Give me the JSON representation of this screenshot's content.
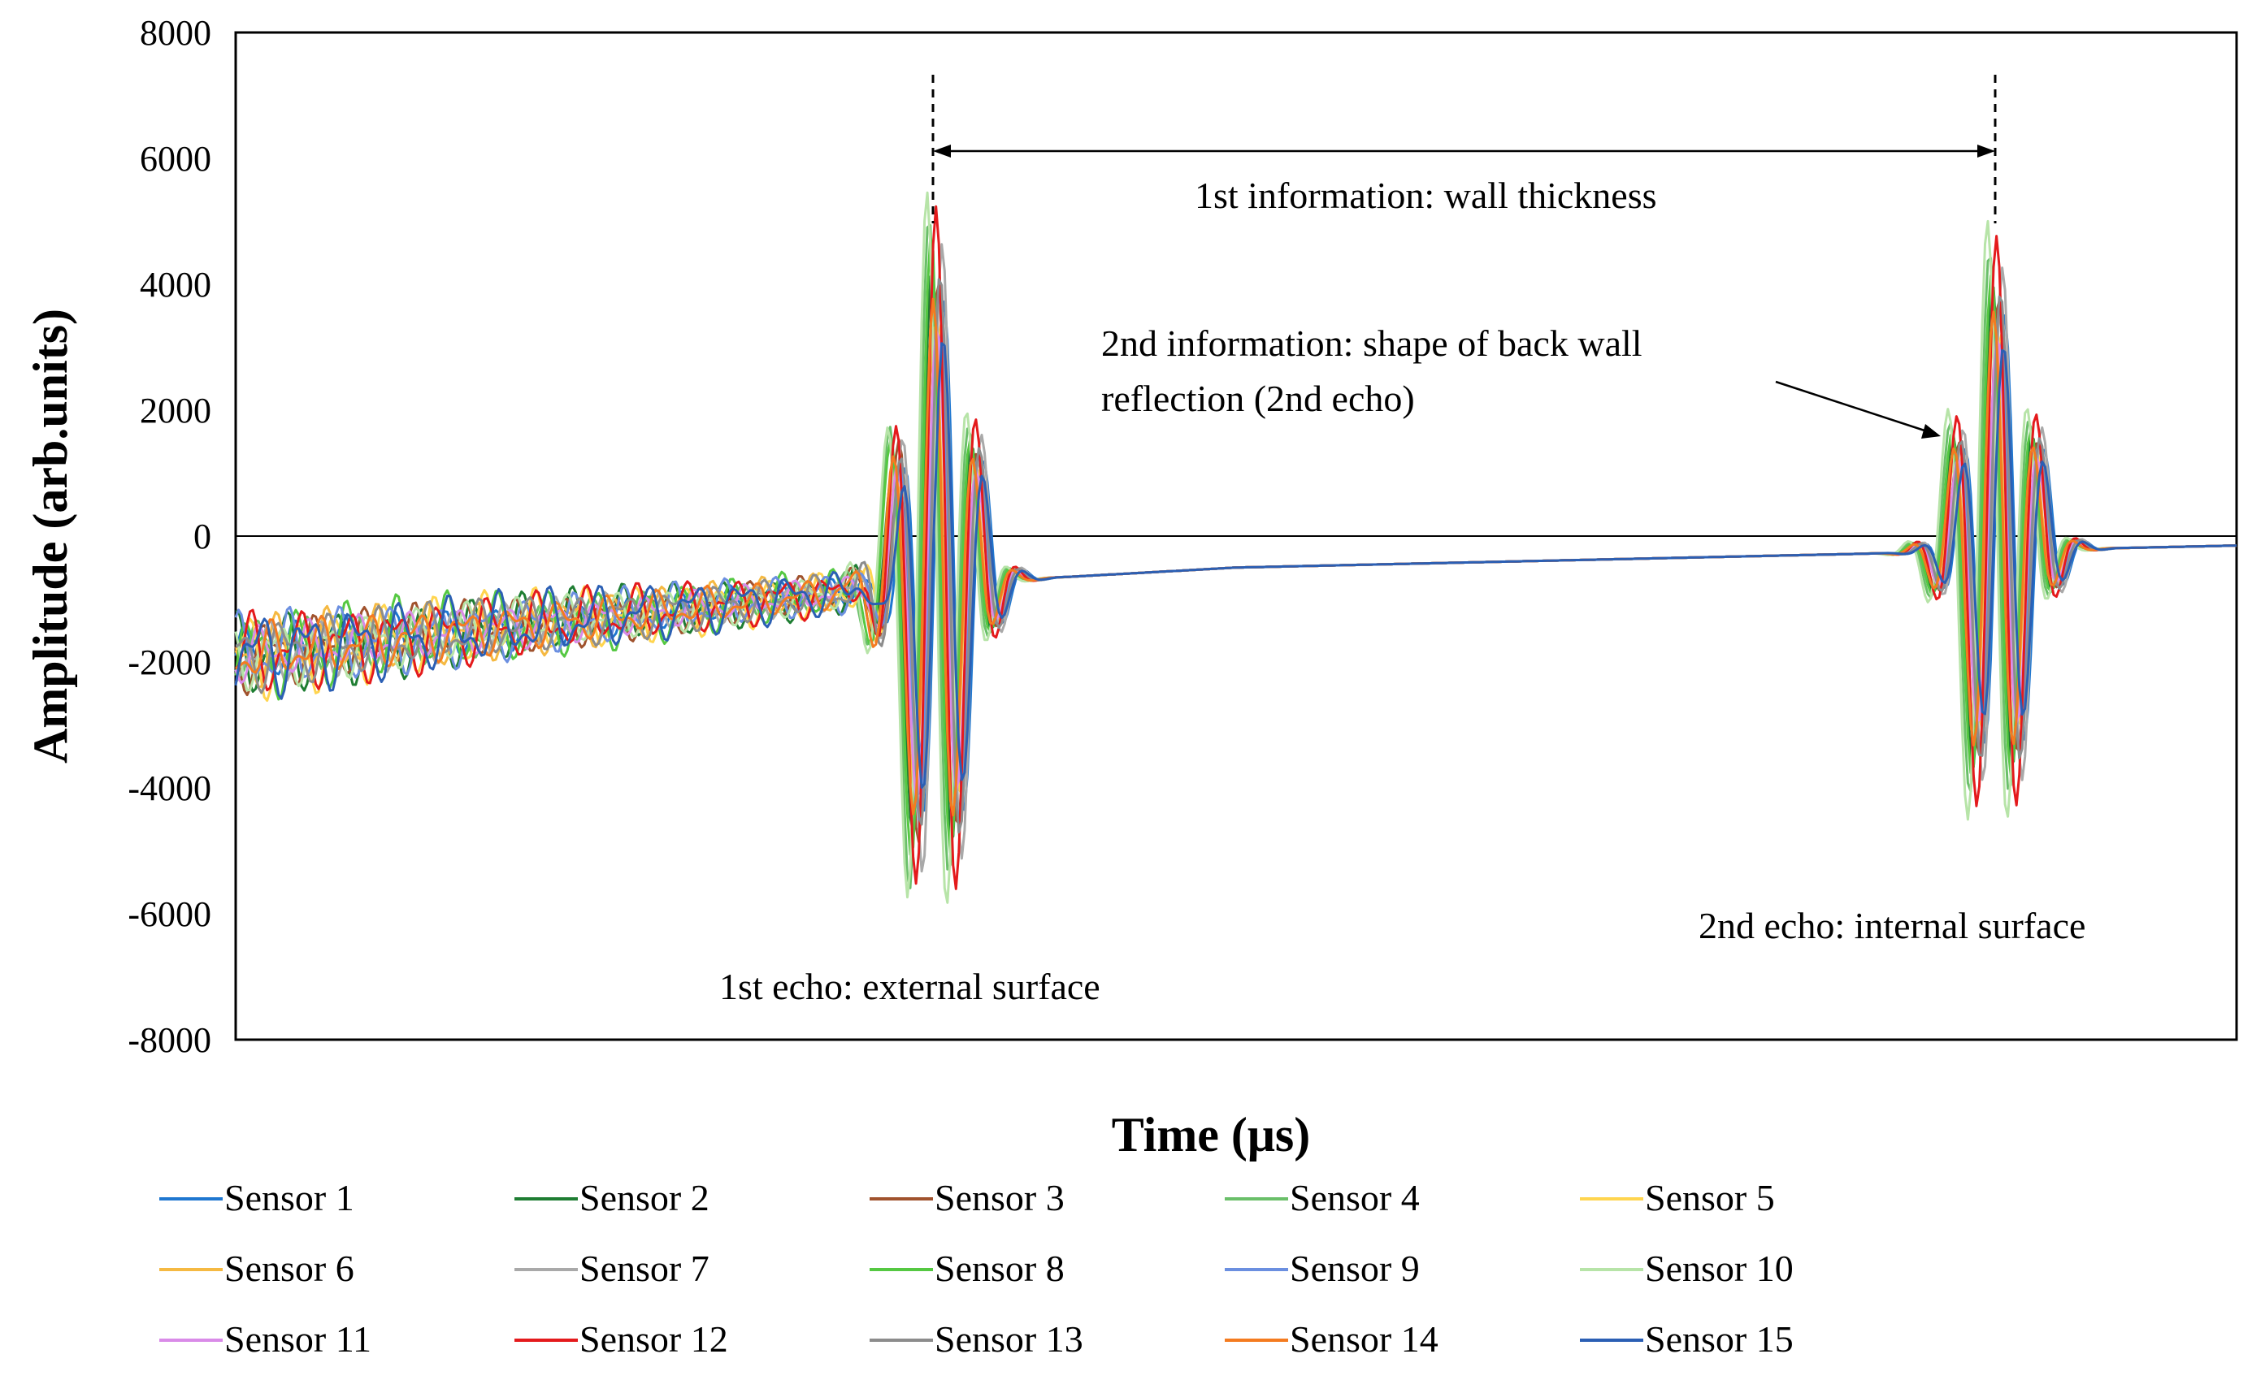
{
  "chart_data": {
    "type": "line",
    "title": "",
    "xlabel": "Time (μs)",
    "ylabel": "Amplitude (arb.units)",
    "ylim": [
      -8000,
      8000
    ],
    "yticks": [
      8000,
      6000,
      4000,
      2000,
      0,
      -2000,
      -4000,
      -6000,
      -8000
    ],
    "xlim": [
      0,
      100
    ],
    "legend_position": "bottom",
    "annotations": [
      {
        "text": "1st information: wall thickness"
      },
      {
        "text_line1": "2nd information: shape of back wall",
        "text_line2": "reflection (2nd echo)"
      },
      {
        "text": "1st echo: external surface"
      },
      {
        "text": "2nd echo: internal surface"
      }
    ],
    "echoes": [
      {
        "name": "1st echo",
        "time": 35,
        "peak_amplitude": 6000
      },
      {
        "name": "2nd echo",
        "time": 88,
        "peak_amplitude": 5000
      }
    ],
    "series": [
      {
        "name": "Sensor 1",
        "color": "#1f77d0",
        "gain": 0.75,
        "shift": 0.4
      },
      {
        "name": "Sensor 2",
        "color": "#1e7d32",
        "gain": 0.85,
        "shift": -0.2
      },
      {
        "name": "Sensor 3",
        "color": "#a0522d",
        "gain": 0.8,
        "shift": 0.1
      },
      {
        "name": "Sensor 4",
        "color": "#6abf69",
        "gain": 0.95,
        "shift": -0.35
      },
      {
        "name": "Sensor 5",
        "color": "#ffd54f",
        "gain": 0.7,
        "shift": 0.25
      },
      {
        "name": "Sensor 6",
        "color": "#f5b942",
        "gain": 0.72,
        "shift": -0.1
      },
      {
        "name": "Sensor 7",
        "color": "#a9a9a9",
        "gain": 0.9,
        "shift": 0.3
      },
      {
        "name": "Sensor 8",
        "color": "#55c842",
        "gain": 0.88,
        "shift": -0.25
      },
      {
        "name": "Sensor 9",
        "color": "#6b8fe0",
        "gain": 0.78,
        "shift": 0.15
      },
      {
        "name": "Sensor 10",
        "color": "#b7e4a8",
        "gain": 1.05,
        "shift": -0.45
      },
      {
        "name": "Sensor 11",
        "color": "#d98be8",
        "gain": 0.68,
        "shift": 0.05
      },
      {
        "name": "Sensor 12",
        "color": "#e41a1c",
        "gain": 1.0,
        "shift": 0.0
      },
      {
        "name": "Sensor 13",
        "color": "#8c8c8c",
        "gain": 0.82,
        "shift": 0.2
      },
      {
        "name": "Sensor 14",
        "color": "#f47b20",
        "gain": 0.76,
        "shift": -0.15
      },
      {
        "name": "Sensor 15",
        "color": "#2b5fb4",
        "gain": 0.65,
        "shift": 0.35
      }
    ]
  }
}
